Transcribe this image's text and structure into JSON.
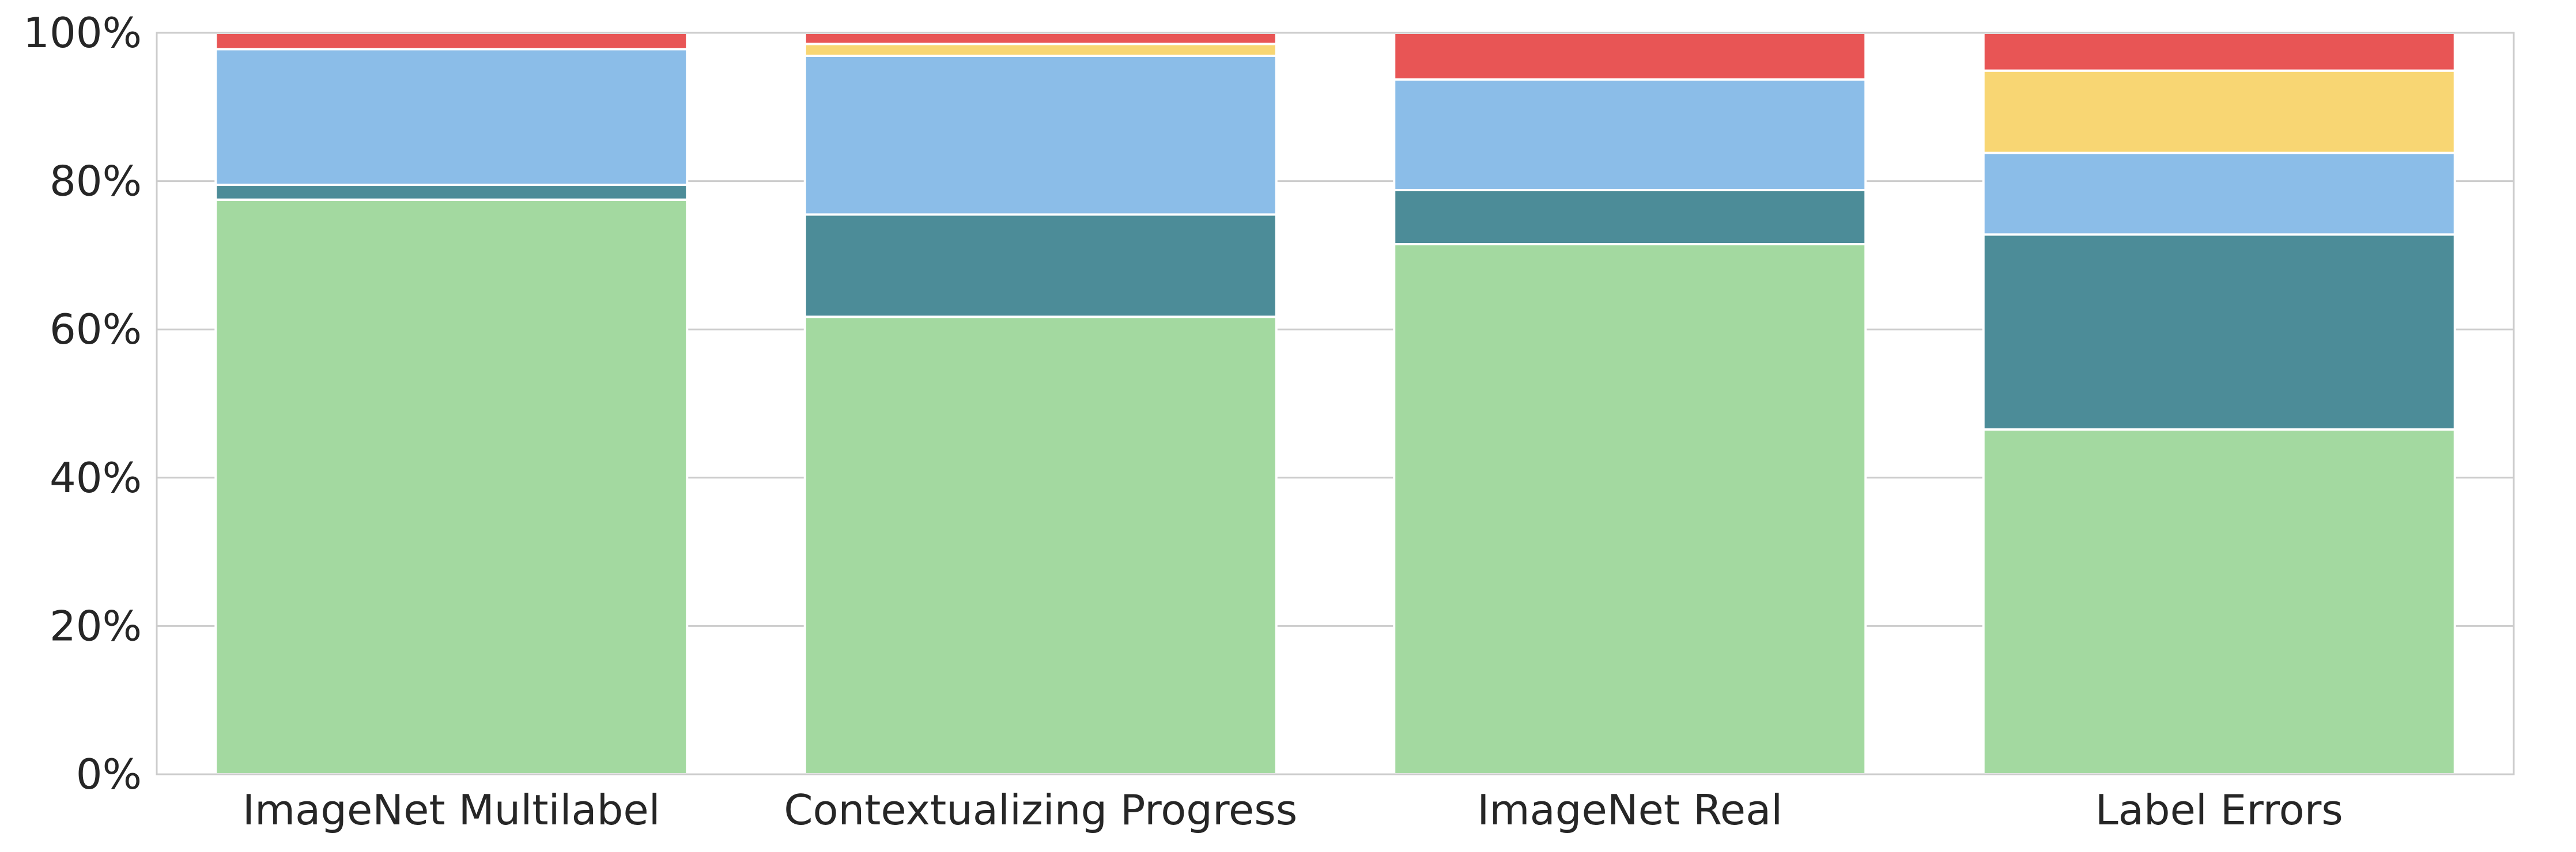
{
  "chart_data": {
    "type": "bar",
    "stacked": true,
    "categories": [
      "ImageNet Multilabel",
      "Contextualizing Progress",
      "ImageNet Real",
      "Label Errors"
    ],
    "series": [
      {
        "values": [
          77.5,
          61.7,
          71.5,
          46.5
        ],
        "color": "#a3d9a0"
      },
      {
        "values": [
          2.0,
          13.8,
          7.3,
          26.3
        ],
        "color": "#4c8c98"
      },
      {
        "values": [
          18.3,
          21.4,
          14.9,
          11.0
        ],
        "color": "#8bbde8"
      },
      {
        "values": [
          0.0,
          1.6,
          0.0,
          11.1
        ],
        "color": "#f8d673"
      },
      {
        "values": [
          2.2,
          1.5,
          6.3,
          5.1
        ],
        "color": "#e85555"
      }
    ],
    "ylim": [
      0,
      100
    ],
    "yticks": [
      "0%",
      "20%",
      "40%",
      "60%",
      "80%",
      "100%"
    ],
    "ytick_values": [
      0,
      20,
      40,
      60,
      80,
      100
    ],
    "grid": "horizontal",
    "xlabel": "",
    "ylabel": "",
    "title": ""
  }
}
